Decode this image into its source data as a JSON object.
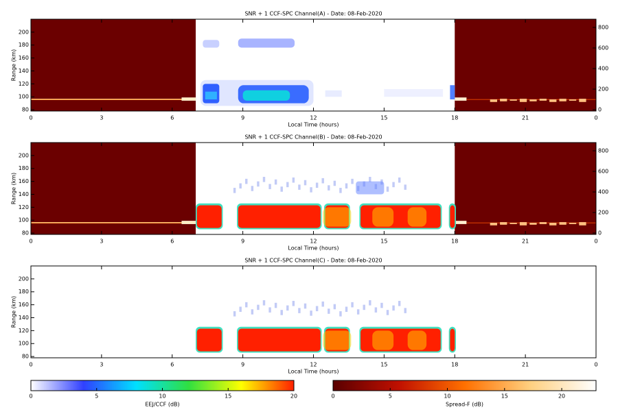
{
  "chart_data": [
    {
      "type": "heatmap",
      "title": "SNR + 1 CCF-SPC Channel(A) - Date: 08-Feb-2020",
      "xlabel": "Local Time (hours)",
      "ylabel": "Range (km)",
      "xlim": [
        0,
        24
      ],
      "xticks": [
        0,
        3,
        6,
        9,
        12,
        15,
        18,
        21,
        {
          "value": 24,
          "label": "0"
        }
      ],
      "ylim": [
        78,
        220
      ],
      "yticks": [
        80,
        100,
        120,
        140,
        160,
        180,
        200
      ],
      "y2lim": [
        -13,
        880
      ],
      "y2ticks": [
        0,
        200,
        400,
        600,
        800
      ]
    },
    {
      "type": "heatmap",
      "title": "SNR + 1 CCF-SPC Channel(B) - Date: 08-Feb-2020",
      "xlabel": "Local Time (hours)",
      "ylabel": "Range (km)",
      "xlim": [
        0,
        24
      ],
      "xticks": [
        0,
        3,
        6,
        9,
        12,
        15,
        18,
        21,
        {
          "value": 24,
          "label": "0"
        }
      ],
      "ylim": [
        78,
        220
      ],
      "yticks": [
        80,
        100,
        120,
        140,
        160,
        180,
        200
      ],
      "y2lim": [
        -13,
        880
      ],
      "y2ticks": [
        0,
        200,
        400,
        600,
        800
      ]
    },
    {
      "type": "heatmap",
      "title": "SNR + 1 CCF-SPC Channel(C) - Date: 08-Feb-2020",
      "xlabel": "Local Time (hours)",
      "ylabel": "Range (km)",
      "xlim": [
        0,
        24
      ],
      "xticks": [
        0,
        3,
        6,
        9,
        12,
        15,
        18,
        21,
        {
          "value": 24,
          "label": "0"
        }
      ],
      "ylim": [
        78,
        220
      ],
      "yticks": [
        80,
        100,
        120,
        140,
        160,
        180,
        200
      ]
    }
  ],
  "colorbars": [
    {
      "label": "EEJ/CCF (dB)",
      "xlim": [
        0,
        20
      ],
      "xticks": [
        0,
        5,
        10,
        15,
        20
      ],
      "colors": [
        "#ffffff",
        "#3040ff",
        "#00e0ff",
        "#30e040",
        "#ffff00",
        "#ff2000"
      ]
    },
    {
      "label": "Spread-F (dB)",
      "xlim": [
        0,
        23
      ],
      "xticks": [
        0,
        5,
        10,
        15,
        20
      ],
      "colors": [
        "#5a0000",
        "#c01000",
        "#ff7000",
        "#ffd080",
        "#ffffff"
      ]
    }
  ]
}
